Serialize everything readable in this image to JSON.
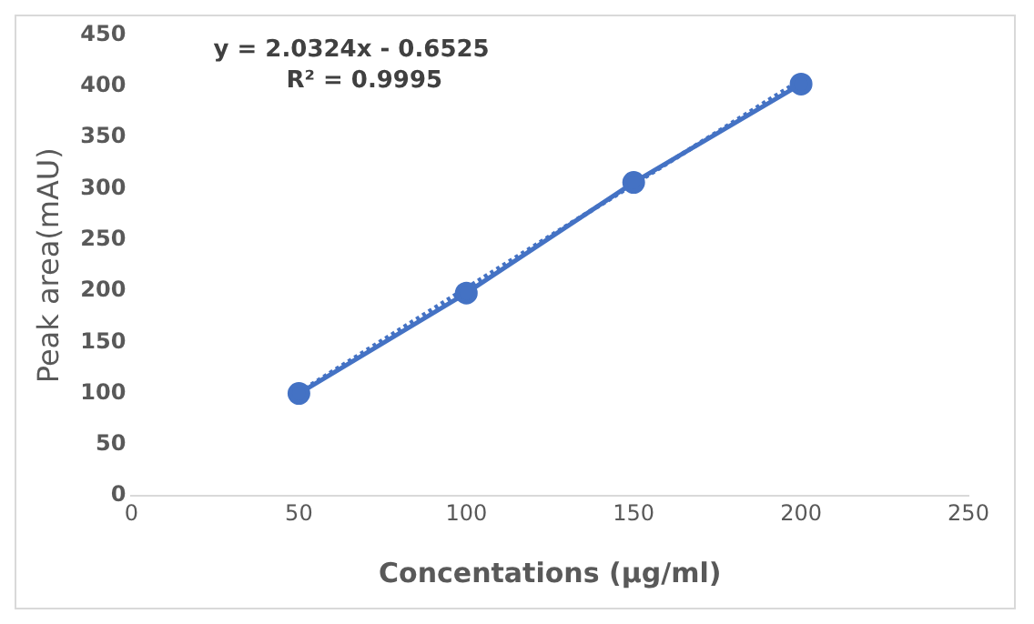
{
  "chart_data": {
    "type": "line",
    "xlabel": "Concentations (µg/ml)",
    "ylabel": "Peak area(mAU)",
    "annotations": [
      "y = 2.0324x - 0.6525",
      "R² = 0.9995"
    ],
    "x": [
      50,
      100,
      150,
      200
    ],
    "series": [
      {
        "color": "#4472c4",
        "values": [
          100,
          198,
          306,
          402
        ],
        "marker": "circle",
        "line_style": "solid"
      },
      {
        "type": "line",
        "color": "#4472c4",
        "x": [
          50,
          200
        ],
        "values": [
          101,
          406
        ],
        "marker": "none",
        "line_style": "dotted"
      }
    ],
    "xlim": [
      0,
      250
    ],
    "xticks": [
      0,
      50,
      100,
      150,
      200,
      250
    ],
    "ylim": [
      0,
      450
    ],
    "yticks": [
      0,
      50,
      100,
      150,
      200,
      250,
      300,
      350,
      400,
      450
    ],
    "grid": false,
    "legend": false
  }
}
